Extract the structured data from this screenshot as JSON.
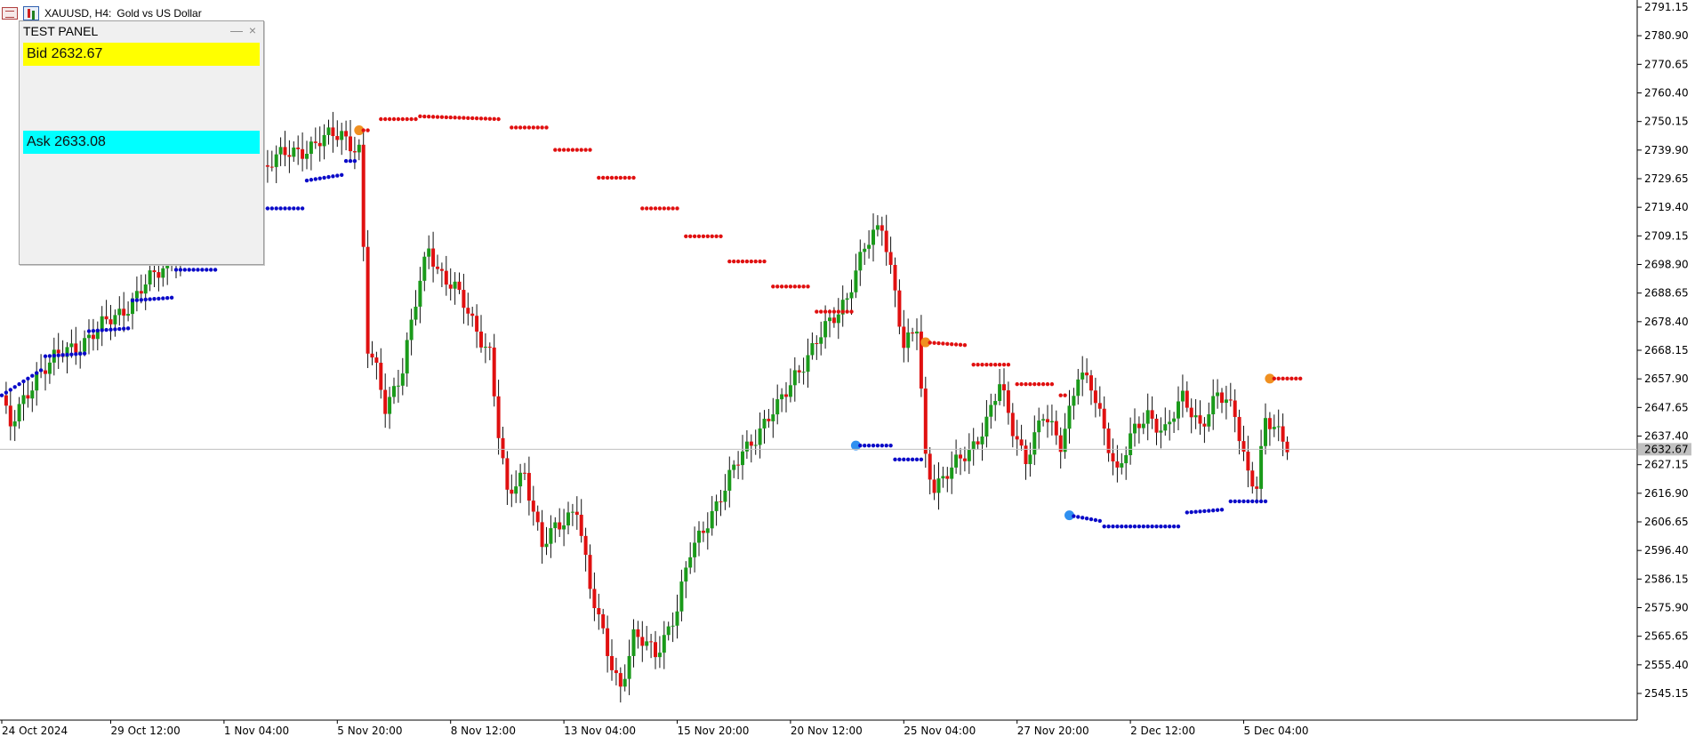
{
  "header": {
    "symbol": "XAUUSD, H4:",
    "description": "Gold vs US Dollar"
  },
  "panel": {
    "title": "TEST PANEL",
    "minimize_glyph": "—",
    "close_glyph": "×",
    "bid_label": "Bid 2632.67",
    "ask_label": "Ask 2633.08"
  },
  "colors": {
    "bull": "#1a9a1a",
    "bear": "#e01010",
    "sar_up": "#0a0ac8",
    "sar_down": "#e01010",
    "flip_up": "#3090f0",
    "flip_down": "#f09020",
    "grid": "#c8c8c8",
    "bid_line": "#c0c0c0",
    "bid_bg": "#ffff00",
    "ask_bg": "#00ffff"
  },
  "chart_data": {
    "type": "candlestick",
    "ylim": [
      2540,
      2792
    ],
    "current_price": 2632.67,
    "current_price_label": "2632.67",
    "y_ticks": [
      "2791.15",
      "2780.90",
      "2770.65",
      "2760.40",
      "2750.15",
      "2739.90",
      "2729.65",
      "2719.40",
      "2709.15",
      "2698.90",
      "2688.65",
      "2678.40",
      "2668.15",
      "2657.90",
      "2647.65",
      "2637.40",
      "2627.15",
      "2616.90",
      "2606.65",
      "2596.40",
      "2586.15",
      "2575.90",
      "2565.65",
      "2555.40",
      "2545.15"
    ],
    "x_labels": [
      {
        "bar": 0,
        "label": "24 Oct 2024"
      },
      {
        "bar": 25,
        "label": "29 Oct 12:00"
      },
      {
        "bar": 51,
        "label": "1 Nov 04:00"
      },
      {
        "bar": 77,
        "label": "5 Nov 20:00"
      },
      {
        "bar": 103,
        "label": "8 Nov 12:00"
      },
      {
        "bar": 129,
        "label": "13 Nov 04:00"
      },
      {
        "bar": 155,
        "label": "15 Nov 20:00"
      },
      {
        "bar": 181,
        "label": "20 Nov 12:00"
      },
      {
        "bar": 207,
        "label": "25 Nov 04:00"
      },
      {
        "bar": 233,
        "label": "27 Nov 20:00"
      },
      {
        "bar": 259,
        "label": "2 Dec 12:00"
      },
      {
        "bar": 285,
        "label": "5 Dec 04:00"
      }
    ],
    "price_anchors": [
      [
        0,
        2652
      ],
      [
        1,
        2645
      ],
      [
        2,
        2640
      ],
      [
        8,
        2660
      ],
      [
        15,
        2668
      ],
      [
        22,
        2675
      ],
      [
        30,
        2686
      ],
      [
        38,
        2700
      ],
      [
        46,
        2712
      ],
      [
        54,
        2726
      ],
      [
        62,
        2736
      ],
      [
        70,
        2741
      ],
      [
        78,
        2746
      ],
      [
        82,
        2740
      ],
      [
        84,
        2668
      ],
      [
        86,
        2660
      ],
      [
        88,
        2648
      ],
      [
        92,
        2662
      ],
      [
        96,
        2692
      ],
      [
        98,
        2705
      ],
      [
        100,
        2698
      ],
      [
        104,
        2690
      ],
      [
        108,
        2678
      ],
      [
        112,
        2668
      ],
      [
        114,
        2638
      ],
      [
        116,
        2615
      ],
      [
        120,
        2625
      ],
      [
        124,
        2598
      ],
      [
        128,
        2605
      ],
      [
        132,
        2613
      ],
      [
        135,
        2582
      ],
      [
        139,
        2560
      ],
      [
        142,
        2548
      ],
      [
        145,
        2565
      ],
      [
        150,
        2560
      ],
      [
        155,
        2575
      ],
      [
        158,
        2595
      ],
      [
        162,
        2608
      ],
      [
        166,
        2618
      ],
      [
        170,
        2632
      ],
      [
        174,
        2640
      ],
      [
        178,
        2647
      ],
      [
        182,
        2660
      ],
      [
        186,
        2668
      ],
      [
        190,
        2678
      ],
      [
        194,
        2688
      ],
      [
        198,
        2704
      ],
      [
        202,
        2714
      ],
      [
        205,
        2690
      ],
      [
        207,
        2668
      ],
      [
        210,
        2676
      ],
      [
        212,
        2630
      ],
      [
        214,
        2620
      ],
      [
        218,
        2625
      ],
      [
        222,
        2632
      ],
      [
        226,
        2643
      ],
      [
        229,
        2655
      ],
      [
        232,
        2640
      ],
      [
        235,
        2630
      ],
      [
        239,
        2644
      ],
      [
        243,
        2635
      ],
      [
        247,
        2660
      ],
      [
        250,
        2654
      ],
      [
        253,
        2640
      ],
      [
        256,
        2625
      ],
      [
        259,
        2636
      ],
      [
        263,
        2645
      ],
      [
        267,
        2640
      ],
      [
        271,
        2650
      ],
      [
        275,
        2642
      ],
      [
        279,
        2652
      ],
      [
        283,
        2645
      ],
      [
        286,
        2625
      ],
      [
        288,
        2620
      ],
      [
        290,
        2642
      ],
      [
        293,
        2638
      ],
      [
        295,
        2635
      ]
    ],
    "sar_segments": [
      {
        "dir": "up",
        "from": 0,
        "to": 9,
        "start": 2652,
        "end": 2661
      },
      {
        "dir": "up",
        "from": 10,
        "to": 19,
        "start": 2666,
        "end": 2667
      },
      {
        "dir": "up",
        "from": 20,
        "to": 29,
        "start": 2675,
        "end": 2676
      },
      {
        "dir": "up",
        "from": 30,
        "to": 39,
        "start": 2686,
        "end": 2687
      },
      {
        "dir": "up",
        "from": 40,
        "to": 49,
        "start": 2697,
        "end": 2697
      },
      {
        "dir": "up",
        "from": 50,
        "to": 59,
        "start": 2707,
        "end": 2708
      },
      {
        "dir": "up",
        "from": 60,
        "to": 69,
        "start": 2719,
        "end": 2719
      },
      {
        "dir": "up",
        "from": 70,
        "to": 78,
        "start": 2729,
        "end": 2731
      },
      {
        "dir": "up",
        "from": 79,
        "to": 81,
        "start": 2736,
        "end": 2736
      },
      {
        "dir": "down",
        "from": 82,
        "to": 84,
        "start": 2747,
        "end": 2747,
        "flip": true
      },
      {
        "dir": "down",
        "from": 87,
        "to": 95,
        "start": 2751,
        "end": 2751
      },
      {
        "dir": "down",
        "from": 96,
        "to": 114,
        "start": 2752,
        "end": 2751
      },
      {
        "dir": "down",
        "from": 117,
        "to": 125,
        "start": 2748,
        "end": 2748
      },
      {
        "dir": "down",
        "from": 127,
        "to": 135,
        "start": 2740,
        "end": 2740
      },
      {
        "dir": "down",
        "from": 137,
        "to": 145,
        "start": 2730,
        "end": 2730
      },
      {
        "dir": "down",
        "from": 147,
        "to": 155,
        "start": 2719,
        "end": 2719
      },
      {
        "dir": "down",
        "from": 157,
        "to": 165,
        "start": 2709,
        "end": 2709
      },
      {
        "dir": "down",
        "from": 167,
        "to": 175,
        "start": 2700,
        "end": 2700
      },
      {
        "dir": "down",
        "from": 177,
        "to": 185,
        "start": 2691,
        "end": 2691
      },
      {
        "dir": "down",
        "from": 187,
        "to": 195,
        "start": 2682,
        "end": 2682
      },
      {
        "dir": "up",
        "from": 196,
        "to": 204,
        "start": 2634,
        "end": 2634,
        "flip": true
      },
      {
        "dir": "up",
        "from": 205,
        "to": 211,
        "start": 2629,
        "end": 2629
      },
      {
        "dir": "down",
        "from": 212,
        "to": 221,
        "start": 2671,
        "end": 2670,
        "flip": true
      },
      {
        "dir": "down",
        "from": 223,
        "to": 231,
        "start": 2663,
        "end": 2663
      },
      {
        "dir": "down",
        "from": 233,
        "to": 241,
        "start": 2656,
        "end": 2656
      },
      {
        "dir": "down",
        "from": 243,
        "to": 244,
        "start": 2652,
        "end": 2652
      },
      {
        "dir": "up",
        "from": 245,
        "to": 252,
        "start": 2609,
        "end": 2607,
        "flip": true
      },
      {
        "dir": "up",
        "from": 253,
        "to": 270,
        "start": 2605,
        "end": 2605
      },
      {
        "dir": "up",
        "from": 272,
        "to": 280,
        "start": 2610,
        "end": 2611
      },
      {
        "dir": "up",
        "from": 282,
        "to": 290,
        "start": 2614,
        "end": 2614
      },
      {
        "dir": "down",
        "from": 291,
        "to": 298,
        "start": 2658,
        "end": 2658,
        "flip": true
      }
    ]
  }
}
